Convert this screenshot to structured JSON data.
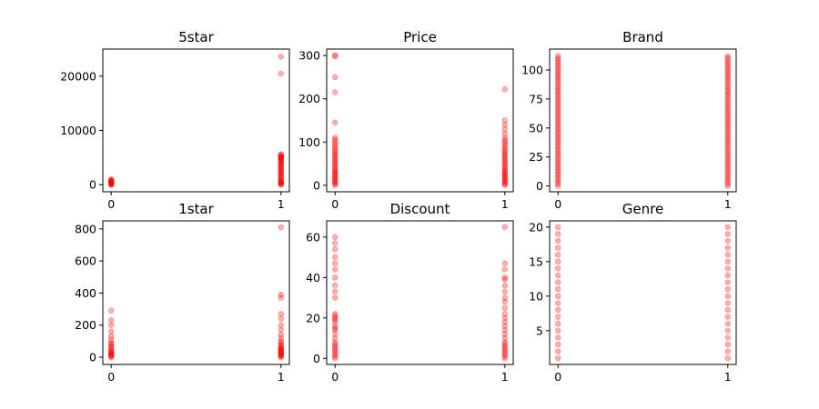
{
  "figure": {
    "background": "#ffffff",
    "marker_color": "#ff0000",
    "marker_opacity": 0.3
  },
  "chart_data": [
    {
      "type": "scatter",
      "title": "5star",
      "xlim": [
        0,
        1
      ],
      "ylim": [
        -1300,
        25000
      ],
      "xticks": [
        0,
        1
      ],
      "xtick_labels": [
        "0",
        "1"
      ],
      "yticks": [
        0,
        10000,
        20000
      ],
      "ytick_labels": [
        "0",
        "10000",
        "20000"
      ],
      "x0": [
        0,
        0,
        0,
        0,
        0,
        0,
        0,
        0,
        0,
        0,
        0,
        0,
        0
      ],
      "y0": [
        0,
        50,
        100,
        150,
        200,
        300,
        400,
        500,
        600,
        700,
        800,
        900,
        1000
      ],
      "x1": [
        1,
        1,
        1,
        1,
        1,
        1,
        1,
        1,
        1,
        1,
        1,
        1,
        1,
        1,
        1,
        1,
        1,
        1,
        1,
        1,
        1,
        1,
        1,
        1,
        1,
        1,
        1,
        1,
        1,
        1,
        1,
        1,
        1,
        1,
        1,
        1
      ],
      "y1": [
        0,
        100,
        200,
        300,
        400,
        500,
        700,
        900,
        1100,
        1300,
        1500,
        1800,
        2100,
        2400,
        2700,
        3000,
        3300,
        3600,
        3900,
        4200,
        4500,
        4700,
        4900,
        5100,
        5300,
        5500,
        5600,
        2000,
        2500,
        3200,
        3800,
        4400,
        4800,
        5200,
        20500,
        23600
      ]
    },
    {
      "type": "scatter",
      "title": "Price",
      "xlim": [
        0,
        1
      ],
      "ylim": [
        -15,
        315
      ],
      "xticks": [
        0,
        1
      ],
      "xtick_labels": [
        "0",
        "1"
      ],
      "yticks": [
        0,
        100,
        200,
        300
      ],
      "ytick_labels": [
        "0",
        "100",
        "200",
        "300"
      ],
      "x0": [
        0,
        0,
        0,
        0,
        0,
        0,
        0,
        0,
        0,
        0,
        0,
        0,
        0,
        0,
        0,
        0,
        0,
        0,
        0,
        0,
        0,
        0,
        0,
        0,
        0,
        0,
        0,
        0,
        0,
        0,
        0,
        0,
        0,
        0,
        0
      ],
      "y0": [
        0,
        3,
        6,
        9,
        12,
        15,
        18,
        21,
        24,
        27,
        30,
        33,
        36,
        40,
        44,
        48,
        52,
        56,
        60,
        64,
        68,
        72,
        76,
        80,
        85,
        90,
        95,
        100,
        105,
        110,
        145,
        215,
        250,
        298,
        301
      ],
      "x1": [
        1,
        1,
        1,
        1,
        1,
        1,
        1,
        1,
        1,
        1,
        1,
        1,
        1,
        1,
        1,
        1,
        1,
        1,
        1,
        1,
        1,
        1,
        1,
        1,
        1,
        1,
        1,
        1,
        1,
        1,
        1,
        1,
        1,
        1,
        1
      ],
      "y1": [
        0,
        3,
        6,
        9,
        12,
        15,
        18,
        21,
        24,
        27,
        30,
        33,
        36,
        40,
        44,
        48,
        52,
        56,
        60,
        64,
        68,
        72,
        76,
        80,
        85,
        90,
        95,
        100,
        105,
        110,
        120,
        130,
        140,
        150,
        222
      ]
    },
    {
      "type": "scatter",
      "title": "Brand",
      "xlim": [
        0,
        1
      ],
      "ylim": [
        -5,
        118
      ],
      "xticks": [
        0,
        1
      ],
      "xtick_labels": [
        "0",
        "1"
      ],
      "yticks": [
        0,
        25,
        50,
        75,
        100
      ],
      "ytick_labels": [
        "0",
        "25",
        "50",
        "75",
        "100"
      ],
      "x0": [
        0,
        0,
        0,
        0,
        0,
        0,
        0,
        0,
        0,
        0,
        0,
        0,
        0,
        0,
        0,
        0,
        0,
        0,
        0,
        0,
        0,
        0,
        0,
        0,
        0,
        0,
        0,
        0,
        0,
        0,
        0,
        0,
        0,
        0,
        0,
        0,
        0,
        0,
        0,
        0,
        0,
        0,
        0,
        0,
        0,
        0,
        0,
        0,
        0,
        0,
        0,
        0,
        0,
        0,
        0,
        0,
        0
      ],
      "y0": [
        0,
        2,
        4,
        6,
        8,
        10,
        12,
        14,
        16,
        18,
        20,
        22,
        24,
        26,
        28,
        30,
        32,
        34,
        36,
        38,
        40,
        42,
        44,
        46,
        48,
        50,
        52,
        54,
        56,
        58,
        60,
        62,
        64,
        66,
        68,
        70,
        72,
        74,
        76,
        78,
        80,
        82,
        84,
        86,
        88,
        90,
        92,
        94,
        96,
        98,
        100,
        102,
        104,
        106,
        108,
        110,
        112
      ],
      "x1": [
        1,
        1,
        1,
        1,
        1,
        1,
        1,
        1,
        1,
        1,
        1,
        1,
        1,
        1,
        1,
        1,
        1,
        1,
        1,
        1,
        1,
        1,
        1,
        1,
        1,
        1,
        1,
        1,
        1,
        1,
        1,
        1,
        1,
        1,
        1,
        1,
        1,
        1,
        1,
        1,
        1,
        1,
        1,
        1,
        1,
        1,
        1,
        1,
        1,
        1,
        1,
        1,
        1,
        1,
        1,
        1,
        1
      ],
      "y1": [
        0,
        2,
        4,
        6,
        8,
        10,
        12,
        14,
        16,
        18,
        20,
        22,
        24,
        26,
        28,
        30,
        32,
        34,
        36,
        38,
        40,
        42,
        44,
        46,
        48,
        50,
        52,
        54,
        56,
        58,
        60,
        62,
        64,
        66,
        68,
        70,
        72,
        74,
        76,
        78,
        80,
        82,
        84,
        86,
        88,
        90,
        92,
        94,
        96,
        98,
        100,
        102,
        104,
        106,
        108,
        110,
        112
      ]
    },
    {
      "type": "scatter",
      "title": "1star",
      "xlim": [
        0,
        1
      ],
      "ylim": [
        -45,
        850
      ],
      "xticks": [
        0,
        1
      ],
      "xtick_labels": [
        "0",
        "1"
      ],
      "yticks": [
        0,
        200,
        400,
        600,
        800
      ],
      "ytick_labels": [
        "0",
        "200",
        "400",
        "600",
        "800"
      ],
      "x0": [
        0,
        0,
        0,
        0,
        0,
        0,
        0,
        0,
        0,
        0,
        0,
        0,
        0,
        0,
        0,
        0,
        0,
        0,
        0,
        0
      ],
      "y0": [
        0,
        5,
        10,
        15,
        20,
        25,
        30,
        35,
        40,
        50,
        60,
        70,
        80,
        90,
        110,
        130,
        160,
        200,
        230,
        290
      ],
      "x1": [
        1,
        1,
        1,
        1,
        1,
        1,
        1,
        1,
        1,
        1,
        1,
        1,
        1,
        1,
        1,
        1,
        1,
        1,
        1,
        1,
        1,
        1,
        1,
        1,
        1,
        1
      ],
      "y1": [
        0,
        5,
        10,
        15,
        20,
        25,
        30,
        35,
        40,
        45,
        50,
        55,
        60,
        70,
        80,
        90,
        100,
        120,
        140,
        170,
        200,
        240,
        270,
        370,
        390,
        810
      ]
    },
    {
      "type": "scatter",
      "title": "Discount",
      "xlim": [
        0,
        1
      ],
      "ylim": [
        -3,
        68
      ],
      "xticks": [
        0,
        1
      ],
      "xtick_labels": [
        "0",
        "1"
      ],
      "yticks": [
        0,
        20,
        40,
        60
      ],
      "ytick_labels": [
        "0",
        "20",
        "40",
        "60"
      ],
      "x0": [
        0,
        0,
        0,
        0,
        0,
        0,
        0,
        0,
        0,
        0,
        0,
        0,
        0,
        0,
        0,
        0,
        0,
        0,
        0,
        0,
        0,
        0,
        0,
        0,
        0,
        0,
        0,
        0,
        0
      ],
      "y0": [
        0,
        1,
        2,
        3,
        4,
        5,
        6,
        7,
        8,
        10,
        12,
        14,
        15,
        16,
        18,
        19,
        20,
        21,
        22,
        30,
        33,
        36,
        40,
        44,
        47,
        50,
        54,
        57,
        60
      ],
      "x1": [
        1,
        1,
        1,
        1,
        1,
        1,
        1,
        1,
        1,
        1,
        1,
        1,
        1,
        1,
        1,
        1,
        1,
        1,
        1,
        1,
        1,
        1,
        1,
        1,
        1,
        1
      ],
      "y1": [
        0,
        1,
        2,
        3,
        4,
        5,
        6,
        7,
        8,
        10,
        12,
        14,
        16,
        18,
        20,
        22,
        25,
        28,
        30,
        33,
        36,
        39,
        40,
        44,
        47,
        65
      ]
    },
    {
      "type": "scatter",
      "title": "Genre",
      "xlim": [
        0,
        1
      ],
      "ylim": [
        0.1,
        20.9
      ],
      "xticks": [
        0,
        1
      ],
      "xtick_labels": [
        "0",
        "1"
      ],
      "yticks": [
        5,
        10,
        15,
        20
      ],
      "ytick_labels": [
        "5",
        "10",
        "15",
        "20"
      ],
      "x0": [
        0,
        0,
        0,
        0,
        0,
        0,
        0,
        0,
        0,
        0,
        0,
        0,
        0,
        0,
        0,
        0,
        0,
        0,
        0,
        0
      ],
      "y0": [
        1,
        2,
        3,
        4,
        5,
        6,
        7,
        8,
        9,
        10,
        11,
        12,
        13,
        14,
        15,
        16,
        17,
        18,
        19,
        20
      ],
      "x1": [
        1,
        1,
        1,
        1,
        1,
        1,
        1,
        1,
        1,
        1,
        1,
        1,
        1,
        1,
        1,
        1,
        1,
        1,
        1,
        1
      ],
      "y1": [
        1,
        2,
        3,
        4,
        5,
        6,
        7,
        8,
        9,
        10,
        11,
        12,
        13,
        14,
        15,
        16,
        17,
        18,
        19,
        20
      ]
    }
  ]
}
